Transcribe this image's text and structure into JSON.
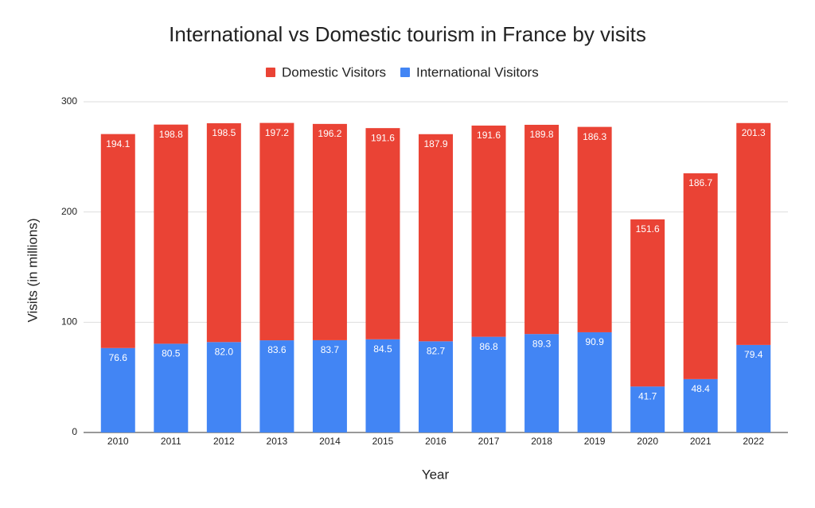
{
  "chart_data": {
    "type": "stacked_bar",
    "title": "International vs Domestic tourism in France by visits",
    "x_label": "Year",
    "y_label": "Visits (in millions)",
    "categories": [
      "2010",
      "2011",
      "2012",
      "2013",
      "2014",
      "2015",
      "2016",
      "2017",
      "2018",
      "2019",
      "2020",
      "2021",
      "2022"
    ],
    "series": [
      {
        "name": "Domestic Visitors",
        "color": "#ea4335",
        "values": [
          194.1,
          198.8,
          198.5,
          197.2,
          196.2,
          191.6,
          187.9,
          191.6,
          189.8,
          186.3,
          151.6,
          186.7,
          201.3
        ],
        "value_labels": [
          "194.1",
          "198.8",
          "198.5",
          "197.2",
          "196.2",
          "191.6",
          "187.9",
          "191.6",
          "189.8",
          "186.3",
          "151.6",
          "186.7",
          "201.3"
        ]
      },
      {
        "name": "International Visitors",
        "color": "#4285f4",
        "values": [
          76.6,
          80.5,
          82.0,
          83.6,
          83.7,
          84.5,
          82.7,
          86.8,
          89.3,
          90.9,
          41.7,
          48.4,
          79.4
        ],
        "value_labels": [
          "76.6",
          "80.5",
          "82.0",
          "83.6",
          "83.7",
          "84.5",
          "82.7",
          "86.8",
          "89.3",
          "90.9",
          "41.7",
          "48.4",
          "79.4"
        ]
      }
    ],
    "ylim": [
      0,
      300
    ],
    "yticks": [
      0,
      100,
      200,
      300
    ],
    "grid": true,
    "legend": "top"
  }
}
